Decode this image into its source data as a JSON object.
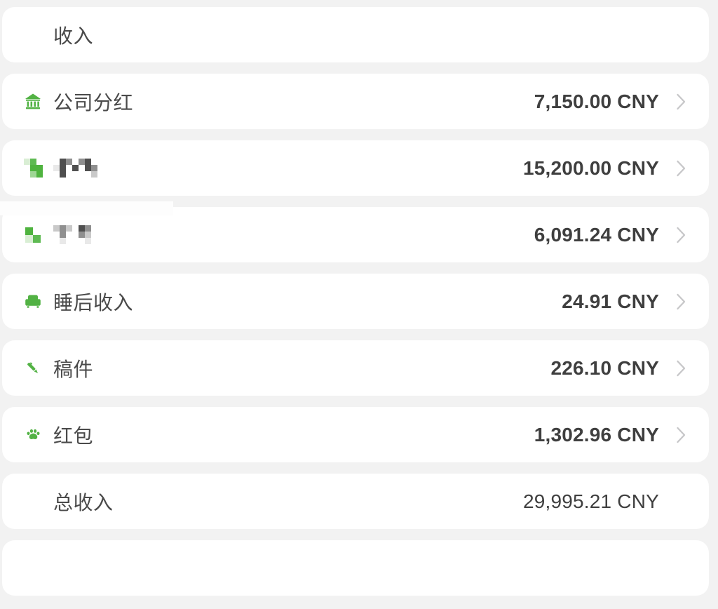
{
  "theme": {
    "bg": "#f2f2f2",
    "card": "#ffffff",
    "green": "#52b244",
    "label": "#4a4a4a",
    "amount": "#3f3f3f",
    "chevron": "#c7c7c9",
    "patch": "#fdfdfd"
  },
  "header": {
    "title": "收入"
  },
  "rows": [
    {
      "icon": "bank-icon",
      "label": "公司分红",
      "amount": "7,150.00 CNY",
      "chevron": true,
      "redacted": false
    },
    {
      "icon": "redacted-icon",
      "label": "",
      "amount": "15,200.00 CNY",
      "chevron": true,
      "redacted": true
    },
    {
      "icon": "redacted-icon",
      "label": "",
      "amount": "6,091.24 CNY",
      "chevron": true,
      "redacted": true
    },
    {
      "icon": "armchair-icon",
      "label": "睡后收入",
      "amount": "24.91 CNY",
      "chevron": true,
      "redacted": false
    },
    {
      "icon": "pen-icon",
      "label": "稿件",
      "amount": "226.10 CNY",
      "chevron": true,
      "redacted": false
    },
    {
      "icon": "paw-icon",
      "label": "红包",
      "amount": "1,302.96 CNY",
      "chevron": true,
      "redacted": false
    }
  ],
  "total": {
    "label": "总收入",
    "amount": "29,995.21 CNY"
  },
  "mosaics": {
    "palette": {
      "G": "#4fb33f",
      "g": "#5eba52",
      "l": "#9ed694",
      "f": "#d9eed4",
      "d": "#4f4f4f",
      "m": "#8f8f8f",
      "L": "#c9c9c9",
      "e": "#e9e9e9"
    },
    "row2_icon": {
      "cell": 9,
      "rows": [
        [
          "f",
          "g",
          ""
        ],
        [
          "",
          "G",
          "G"
        ],
        [
          "",
          "l",
          "G"
        ]
      ]
    },
    "row2_label": {
      "cell": 9,
      "rows": [
        [
          "",
          "d",
          "m",
          "",
          "m",
          "d",
          ""
        ],
        [
          "e",
          "d",
          "",
          "d",
          "",
          "d",
          "m"
        ],
        [
          "",
          "d",
          "",
          "",
          "",
          "",
          "L"
        ]
      ]
    },
    "row3_icon": {
      "cell": 11,
      "rows": [
        [
          "G",
          ""
        ],
        [
          "f",
          "g"
        ]
      ]
    },
    "row3_label": {
      "cell": 9,
      "rows": [
        [
          "L",
          "m",
          "L",
          "",
          "d",
          "m"
        ],
        [
          "",
          "m",
          "",
          "",
          "m",
          "L"
        ],
        [
          "",
          "e",
          "",
          "",
          "",
          "e"
        ]
      ]
    }
  }
}
